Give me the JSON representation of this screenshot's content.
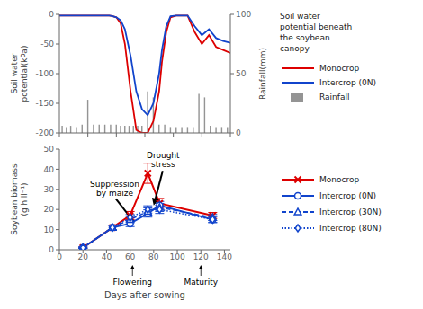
{
  "chart_data": [
    {
      "type": "line",
      "xlim": [
        20,
        140
      ],
      "xticks": [
        20,
        40,
        60,
        80,
        100,
        120,
        140
      ],
      "ylim": [
        -200,
        0
      ],
      "yticks": [
        -200,
        -150,
        -100,
        -50,
        0
      ],
      "y2lim": [
        0,
        100
      ],
      "y2ticks": [
        0,
        50,
        100
      ],
      "ylabel": "Soil water\npotential(kPa)",
      "y2label": "Rainfall(mm)",
      "tick_labels": "y",
      "grid": false,
      "legend": "right",
      "legend_title": "Soil water\npotential beneath\nthe soybean\ncanopy",
      "series": [
        {
          "name": "Rainfall",
          "type": "bar",
          "axis": "y2",
          "color": "#888888",
          "x": [
            22,
            25,
            28,
            32,
            36,
            40,
            44,
            48,
            52,
            56,
            60,
            63,
            66,
            69,
            72,
            75,
            78,
            82,
            86,
            90,
            94,
            98,
            102,
            106,
            110,
            114,
            118,
            122,
            126,
            130,
            134,
            138
          ],
          "values": [
            6,
            5,
            6,
            5,
            7,
            28,
            7,
            7,
            7,
            7,
            7,
            6,
            6,
            6,
            6,
            6,
            6,
            35,
            30,
            7,
            7,
            5,
            5,
            5,
            5,
            5,
            33,
            30,
            6,
            5,
            5,
            5
          ]
        },
        {
          "name": "Monocrop",
          "type": "line",
          "color": "#dd0000",
          "x": [
            20,
            25,
            30,
            35,
            40,
            45,
            50,
            55,
            57,
            60,
            63,
            66,
            70,
            74,
            78,
            82,
            86,
            90,
            92,
            95,
            98,
            102,
            106,
            110,
            115,
            120,
            125,
            130,
            135,
            140
          ],
          "values": [
            -2,
            -2,
            -2,
            -2,
            -2,
            -2,
            -2,
            -2,
            -3,
            -5,
            -15,
            -50,
            -130,
            -195,
            -200,
            -200,
            -180,
            -130,
            -80,
            -30,
            -5,
            -2,
            -2,
            -2,
            -30,
            -50,
            -35,
            -55,
            -60,
            -65
          ]
        },
        {
          "name": "Intercrop (0N)",
          "type": "line",
          "color": "#1144cc",
          "x": [
            20,
            25,
            30,
            35,
            40,
            45,
            50,
            55,
            57,
            60,
            63,
            66,
            70,
            74,
            78,
            82,
            86,
            90,
            92,
            95,
            98,
            102,
            106,
            110,
            115,
            120,
            125,
            130,
            135,
            140
          ],
          "values": [
            -2,
            -2,
            -2,
            -2,
            -2,
            -2,
            -2,
            -2,
            -3,
            -5,
            -10,
            -25,
            -70,
            -130,
            -160,
            -170,
            -150,
            -100,
            -60,
            -20,
            -3,
            -2,
            -2,
            -2,
            -20,
            -35,
            -25,
            -40,
            -45,
            -48
          ]
        }
      ]
    },
    {
      "type": "line",
      "xlim": [
        0,
        145
      ],
      "xticks": [
        0,
        20,
        40,
        60,
        80,
        100,
        120,
        140
      ],
      "ylim": [
        0,
        50
      ],
      "yticks": [
        0,
        10,
        20,
        30,
        40,
        50
      ],
      "xlabel": "Days after sowing",
      "ylabel": "Soybean biomass\n(g hill⁻¹)",
      "grid": false,
      "legend": "right",
      "x": [
        20,
        45,
        60,
        75,
        85,
        130
      ],
      "series": [
        {
          "name": "Monocrop",
          "color": "#dd0000",
          "marker": "x",
          "line_style": "solid",
          "values": [
            1,
            11,
            17,
            38,
            23,
            17
          ],
          "errors": [
            0.3,
            1.2,
            2.0,
            5.0,
            2.5,
            1.5
          ]
        },
        {
          "name": "Intercrop (0N)",
          "color": "#1144cc",
          "marker": "circle",
          "line_style": "solid",
          "values": [
            1,
            11,
            13,
            18,
            22,
            15
          ],
          "errors": [
            0.3,
            1.2,
            1.5,
            1.8,
            2.0,
            1.5
          ]
        },
        {
          "name": "Intercrop (30N)",
          "color": "#1144cc",
          "marker": "triangle",
          "line_style": "dashed",
          "values": [
            1,
            11,
            15,
            19,
            21,
            16
          ],
          "errors": [
            0.3,
            1.2,
            1.5,
            1.8,
            2.0,
            1.5
          ]
        },
        {
          "name": "Intercrop (80N)",
          "color": "#1144cc",
          "marker": "diamond",
          "line_style": "dotted",
          "values": [
            1,
            11,
            16,
            20,
            20,
            15
          ],
          "errors": [
            0.3,
            1.2,
            1.5,
            1.8,
            2.0,
            1.5
          ]
        }
      ],
      "annotations": [
        {
          "text": "Flowering",
          "x": 62
        },
        {
          "text": "Maturity",
          "x": 120
        },
        {
          "text": "Suppression\nby maize",
          "x": 63,
          "y": 14,
          "text_x": 47,
          "text_y": 26
        },
        {
          "text": "Drought\nstress",
          "x": 80,
          "y": 22,
          "text_x": 88,
          "text_y": 40
        }
      ]
    }
  ]
}
